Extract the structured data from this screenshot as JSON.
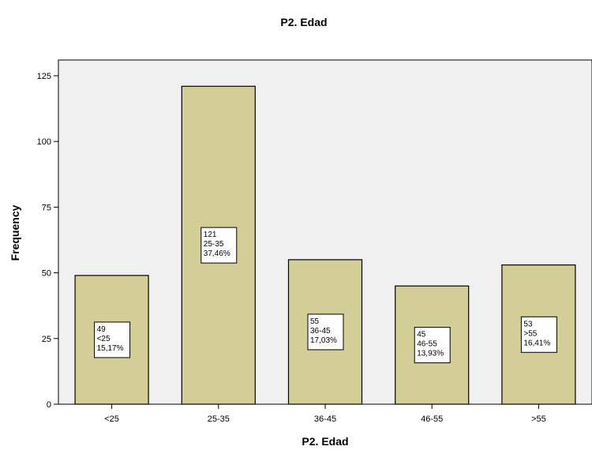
{
  "chart_data": {
    "type": "bar",
    "title": "P2. Edad",
    "xlabel": "P2. Edad",
    "ylabel": "Frequency",
    "categories": [
      "<25",
      "25-35",
      "36-45",
      "46-55",
      ">55"
    ],
    "values": [
      49,
      121,
      55,
      45,
      53
    ],
    "percent_labels": [
      "15,17%",
      "37,46%",
      "17,03%",
      "13,93%",
      "16,41%"
    ],
    "yticks": [
      0,
      25,
      50,
      75,
      100,
      125
    ],
    "ylim": [
      0,
      131
    ],
    "grid": false,
    "legend": "none",
    "colors": {
      "plot_background": "#f0f0f0",
      "bar_fill": "#d3ce97",
      "bar_stroke": "#000000"
    }
  }
}
